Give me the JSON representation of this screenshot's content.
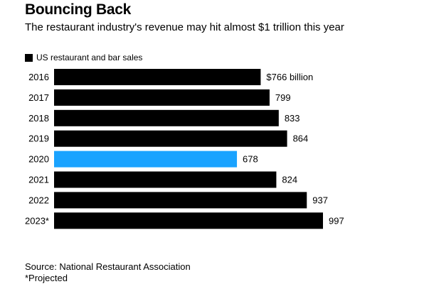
{
  "title": "Bouncing Back",
  "subtitle": "The restaurant industry's revenue may hit almost $1 trillion this year",
  "source": "Source: National Restaurant Association",
  "note": "*Projected",
  "colors": {
    "default_bar": "#000000",
    "highlight_bar": "#1aa3ff"
  },
  "chart_data": {
    "type": "bar",
    "orientation": "horizontal",
    "legend": [
      "US restaurant and bar sales"
    ],
    "legend_position": "top-left",
    "grid": false,
    "categories": [
      "2016",
      "2017",
      "2018",
      "2019",
      "2020",
      "2021",
      "2022",
      "2023*"
    ],
    "values": [
      766,
      799,
      833,
      864,
      678,
      824,
      937,
      997
    ],
    "value_labels": [
      "$766 billion",
      "799",
      "833",
      "864",
      "678",
      "824",
      "937",
      "997"
    ],
    "highlight_category": "2020",
    "xlim": [
      0,
      997
    ]
  }
}
